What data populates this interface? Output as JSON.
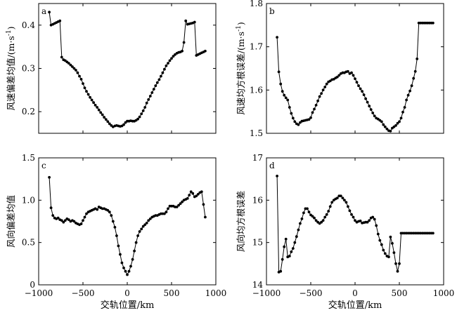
{
  "chart_data": [
    {
      "type": "line",
      "panel_label": "a",
      "xlabel": "",
      "ylabel": "风速偏差均值/(m·s",
      "ylabel_sup": "-1",
      "ylabel_close": ")",
      "xlim": [
        -1000,
        1000
      ],
      "ylim": [
        0.15,
        0.45
      ],
      "xticks": [],
      "yticks": [
        0.2,
        0.3,
        0.4
      ],
      "ytick_labels": [
        "0.2",
        "0.3",
        "0.4"
      ],
      "x": [
        -880,
        -860,
        -840,
        -820,
        -800,
        -780,
        -760,
        -740,
        -720,
        -700,
        -680,
        -660,
        -640,
        -620,
        -600,
        -580,
        -560,
        -540,
        -520,
        -500,
        -480,
        -460,
        -440,
        -420,
        -400,
        -380,
        -360,
        -340,
        -320,
        -300,
        -280,
        -260,
        -240,
        -220,
        -200,
        -180,
        -160,
        -140,
        -120,
        -100,
        -80,
        -60,
        -40,
        -20,
        0,
        20,
        40,
        60,
        80,
        100,
        120,
        140,
        160,
        180,
        200,
        220,
        240,
        260,
        280,
        300,
        320,
        340,
        360,
        380,
        400,
        420,
        440,
        460,
        480,
        500,
        520,
        540,
        560,
        580,
        600,
        620,
        640,
        660,
        680,
        700,
        720,
        740,
        760,
        780,
        800,
        820,
        840,
        860,
        880
      ],
      "y": [
        0.43,
        0.4,
        0.402,
        0.404,
        0.406,
        0.408,
        0.41,
        0.326,
        0.32,
        0.318,
        0.315,
        0.312,
        0.308,
        0.304,
        0.3,
        0.296,
        0.29,
        0.282,
        0.275,
        0.265,
        0.255,
        0.247,
        0.24,
        0.233,
        0.227,
        0.221,
        0.215,
        0.21,
        0.204,
        0.198,
        0.193,
        0.187,
        0.182,
        0.177,
        0.172,
        0.168,
        0.165,
        0.167,
        0.168,
        0.167,
        0.166,
        0.167,
        0.17,
        0.175,
        0.178,
        0.178,
        0.179,
        0.178,
        0.178,
        0.18,
        0.183,
        0.188,
        0.195,
        0.202,
        0.21,
        0.22,
        0.228,
        0.236,
        0.244,
        0.252,
        0.26,
        0.267,
        0.274,
        0.282,
        0.29,
        0.298,
        0.306,
        0.312,
        0.318,
        0.323,
        0.328,
        0.332,
        0.335,
        0.337,
        0.338,
        0.34,
        0.36,
        0.41,
        0.402,
        0.403,
        0.404,
        0.405,
        0.407,
        0.33,
        0.332,
        0.334,
        0.336,
        0.338,
        0.34
      ]
    },
    {
      "type": "line",
      "panel_label": "b",
      "xlabel": "",
      "ylabel": "风速均方根误差/(m·s",
      "ylabel_sup": "-1",
      "ylabel_close": ")",
      "xlim": [
        -1000,
        1000
      ],
      "ylim": [
        1.5,
        1.8
      ],
      "xticks": [],
      "yticks": [
        1.5,
        1.6,
        1.7,
        1.8
      ],
      "ytick_labels": [
        "1.5",
        "1.6",
        "1.7",
        "1.8"
      ],
      "x": [
        -880,
        -860,
        -840,
        -820,
        -800,
        -780,
        -760,
        -740,
        -720,
        -700,
        -680,
        -660,
        -640,
        -620,
        -600,
        -580,
        -560,
        -540,
        -520,
        -500,
        -480,
        -460,
        -440,
        -420,
        -400,
        -380,
        -360,
        -340,
        -320,
        -300,
        -280,
        -260,
        -240,
        -220,
        -200,
        -180,
        -160,
        -140,
        -120,
        -100,
        -80,
        -60,
        -40,
        -20,
        0,
        20,
        40,
        60,
        80,
        100,
        120,
        140,
        160,
        180,
        200,
        220,
        240,
        260,
        280,
        300,
        320,
        340,
        360,
        380,
        400,
        420,
        440,
        460,
        480,
        500,
        520,
        540,
        560,
        580,
        600,
        620,
        640,
        660,
        680,
        700,
        720,
        740,
        760,
        780,
        800,
        820,
        840,
        860,
        880
      ],
      "y": [
        1.722,
        1.642,
        1.614,
        1.597,
        1.588,
        1.582,
        1.577,
        1.56,
        1.546,
        1.535,
        1.527,
        1.522,
        1.52,
        1.525,
        1.528,
        1.529,
        1.53,
        1.531,
        1.532,
        1.536,
        1.548,
        1.556,
        1.565,
        1.575,
        1.585,
        1.592,
        1.6,
        1.607,
        1.614,
        1.619,
        1.621,
        1.624,
        1.625,
        1.628,
        1.63,
        1.634,
        1.638,
        1.64,
        1.64,
        1.642,
        1.643,
        1.638,
        1.64,
        1.634,
        1.626,
        1.618,
        1.61,
        1.603,
        1.597,
        1.589,
        1.58,
        1.572,
        1.563,
        1.555,
        1.547,
        1.54,
        1.535,
        1.533,
        1.53,
        1.527,
        1.52,
        1.515,
        1.51,
        1.506,
        1.505,
        1.512,
        1.515,
        1.518,
        1.523,
        1.527,
        1.535,
        1.549,
        1.56,
        1.577,
        1.588,
        1.598,
        1.61,
        1.627,
        1.643,
        1.672,
        1.755,
        1.755,
        1.755,
        1.755,
        1.755,
        1.755,
        1.755,
        1.755,
        1.755
      ]
    },
    {
      "type": "line",
      "panel_label": "c",
      "xlabel": "交轨位置/km",
      "ylabel": "风向偏差均值",
      "xlim": [
        -1000,
        1000
      ],
      "ylim": [
        0,
        1.5
      ],
      "xticks": [
        -1000,
        -500,
        0,
        500,
        1000
      ],
      "xtick_labels": [
        "−1000",
        "−500",
        "0",
        "500",
        "1000"
      ],
      "yticks": [
        0,
        0.5,
        1.0,
        1.5
      ],
      "ytick_labels": [
        "0",
        "0.5",
        "1.0",
        "1.5"
      ],
      "x": [
        -880,
        -860,
        -840,
        -820,
        -800,
        -780,
        -760,
        -740,
        -720,
        -700,
        -680,
        -660,
        -640,
        -620,
        -600,
        -580,
        -560,
        -540,
        -520,
        -500,
        -480,
        -460,
        -440,
        -420,
        -400,
        -380,
        -360,
        -340,
        -320,
        -300,
        -280,
        -260,
        -240,
        -220,
        -200,
        -180,
        -160,
        -140,
        -120,
        -100,
        -80,
        -60,
        -40,
        -20,
        0,
        20,
        40,
        60,
        80,
        100,
        120,
        140,
        160,
        180,
        200,
        220,
        240,
        260,
        280,
        300,
        320,
        340,
        360,
        380,
        400,
        420,
        440,
        460,
        480,
        500,
        520,
        540,
        560,
        580,
        600,
        620,
        640,
        660,
        680,
        700,
        720,
        740,
        760,
        780,
        800,
        820,
        840,
        860,
        880
      ],
      "y": [
        1.27,
        0.91,
        0.82,
        0.79,
        0.78,
        0.79,
        0.77,
        0.76,
        0.74,
        0.76,
        0.78,
        0.77,
        0.75,
        0.76,
        0.75,
        0.73,
        0.72,
        0.71,
        0.72,
        0.76,
        0.8,
        0.84,
        0.86,
        0.87,
        0.88,
        0.89,
        0.9,
        0.89,
        0.92,
        0.91,
        0.9,
        0.9,
        0.89,
        0.88,
        0.86,
        0.82,
        0.75,
        0.68,
        0.58,
        0.46,
        0.36,
        0.26,
        0.2,
        0.16,
        0.12,
        0.16,
        0.22,
        0.3,
        0.4,
        0.5,
        0.58,
        0.63,
        0.66,
        0.69,
        0.71,
        0.73,
        0.76,
        0.78,
        0.8,
        0.81,
        0.82,
        0.82,
        0.83,
        0.84,
        0.84,
        0.84,
        0.86,
        0.9,
        0.93,
        0.93,
        0.93,
        0.92,
        0.92,
        0.94,
        0.96,
        0.98,
        1.0,
        1.01,
        1.02,
        1.06,
        1.1,
        1.08,
        1.04,
        1.05,
        1.07,
        1.09,
        1.1,
        0.95,
        0.8
      ]
    },
    {
      "type": "line",
      "panel_label": "d",
      "xlabel": "交轨位置/km",
      "ylabel": "风向均方根误差",
      "xlim": [
        -1000,
        1000
      ],
      "ylim": [
        14,
        17
      ],
      "xticks": [
        -1000,
        -500,
        0,
        500,
        1000
      ],
      "xtick_labels": [
        "−1000",
        "−500",
        "0",
        "500",
        "1000"
      ],
      "yticks": [
        14,
        15,
        16,
        17
      ],
      "ytick_labels": [
        "14",
        "15",
        "16",
        "17"
      ],
      "x": [
        -880,
        -860,
        -840,
        -820,
        -800,
        -780,
        -760,
        -740,
        -720,
        -700,
        -680,
        -660,
        -640,
        -620,
        -600,
        -580,
        -560,
        -540,
        -520,
        -500,
        -480,
        -460,
        -440,
        -420,
        -400,
        -380,
        -360,
        -340,
        -320,
        -300,
        -280,
        -260,
        -240,
        -220,
        -200,
        -180,
        -160,
        -140,
        -120,
        -100,
        -80,
        -60,
        -40,
        -20,
        0,
        20,
        40,
        60,
        80,
        100,
        120,
        140,
        160,
        180,
        200,
        220,
        240,
        260,
        280,
        300,
        320,
        340,
        360,
        380,
        400,
        420,
        440,
        460,
        480,
        500,
        520,
        540,
        560,
        580,
        600,
        620,
        640,
        660,
        680,
        700,
        720,
        740,
        760,
        780,
        800,
        820,
        840,
        860,
        880
      ],
      "y": [
        16.57,
        14.3,
        14.32,
        14.6,
        14.9,
        15.08,
        14.66,
        14.68,
        14.78,
        14.86,
        15.0,
        15.14,
        15.3,
        15.45,
        15.56,
        15.7,
        15.8,
        15.8,
        15.72,
        15.65,
        15.62,
        15.58,
        15.52,
        15.48,
        15.45,
        15.48,
        15.52,
        15.6,
        15.66,
        15.74,
        15.85,
        15.95,
        16.0,
        16.03,
        16.05,
        16.1,
        16.1,
        16.05,
        16.0,
        15.95,
        15.85,
        15.75,
        15.66,
        15.6,
        15.52,
        15.48,
        15.5,
        15.51,
        15.46,
        15.47,
        15.48,
        15.48,
        15.52,
        15.58,
        15.6,
        15.55,
        15.4,
        15.2,
        15.05,
        14.95,
        14.82,
        14.74,
        14.68,
        14.66,
        15.13,
        14.98,
        14.76,
        14.5,
        14.32,
        14.5,
        15.22,
        15.22,
        15.22,
        15.22,
        15.22,
        15.22,
        15.22,
        15.22,
        15.22,
        15.22,
        15.22,
        15.22,
        15.22,
        15.22,
        15.22,
        15.22,
        15.22,
        15.22,
        15.22
      ]
    }
  ]
}
